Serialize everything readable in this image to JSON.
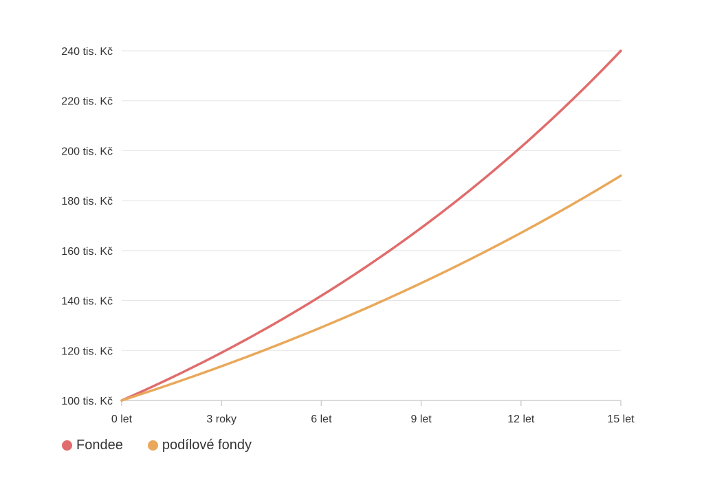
{
  "chart_data": {
    "type": "line",
    "title": "",
    "xlabel": "",
    "ylabel": "",
    "x": [
      0,
      3,
      6,
      9,
      12,
      15
    ],
    "x_tick_labels": [
      "0 let",
      "3 roky",
      "6 let",
      "9 let",
      "12 let",
      "15 let"
    ],
    "xlim": [
      0,
      15
    ],
    "ylim": [
      100,
      240
    ],
    "y_ticks": [
      100,
      120,
      140,
      160,
      180,
      200,
      220,
      240
    ],
    "y_tick_labels": [
      "100 tis. Kč",
      "120 tis. Kč",
      "140 tis. Kč",
      "160 tis. Kč",
      "180 tis. Kč",
      "200 tis. Kč",
      "220 tis. Kč",
      "240 tis. Kč"
    ],
    "grid": true,
    "legend_position": "bottom-left",
    "series": [
      {
        "name": "Fondee",
        "color": "#e06c6c",
        "x": [
          0,
          3,
          6,
          9,
          12,
          15
        ],
        "values": [
          100,
          119.1,
          142.0,
          169.2,
          201.4,
          240.0
        ]
      },
      {
        "name": "podílové fondy",
        "color": "#e9a85a",
        "x": [
          0,
          3,
          6,
          9,
          12,
          15
        ],
        "values": [
          100,
          113.7,
          129.2,
          146.8,
          166.9,
          190.0
        ]
      }
    ]
  }
}
